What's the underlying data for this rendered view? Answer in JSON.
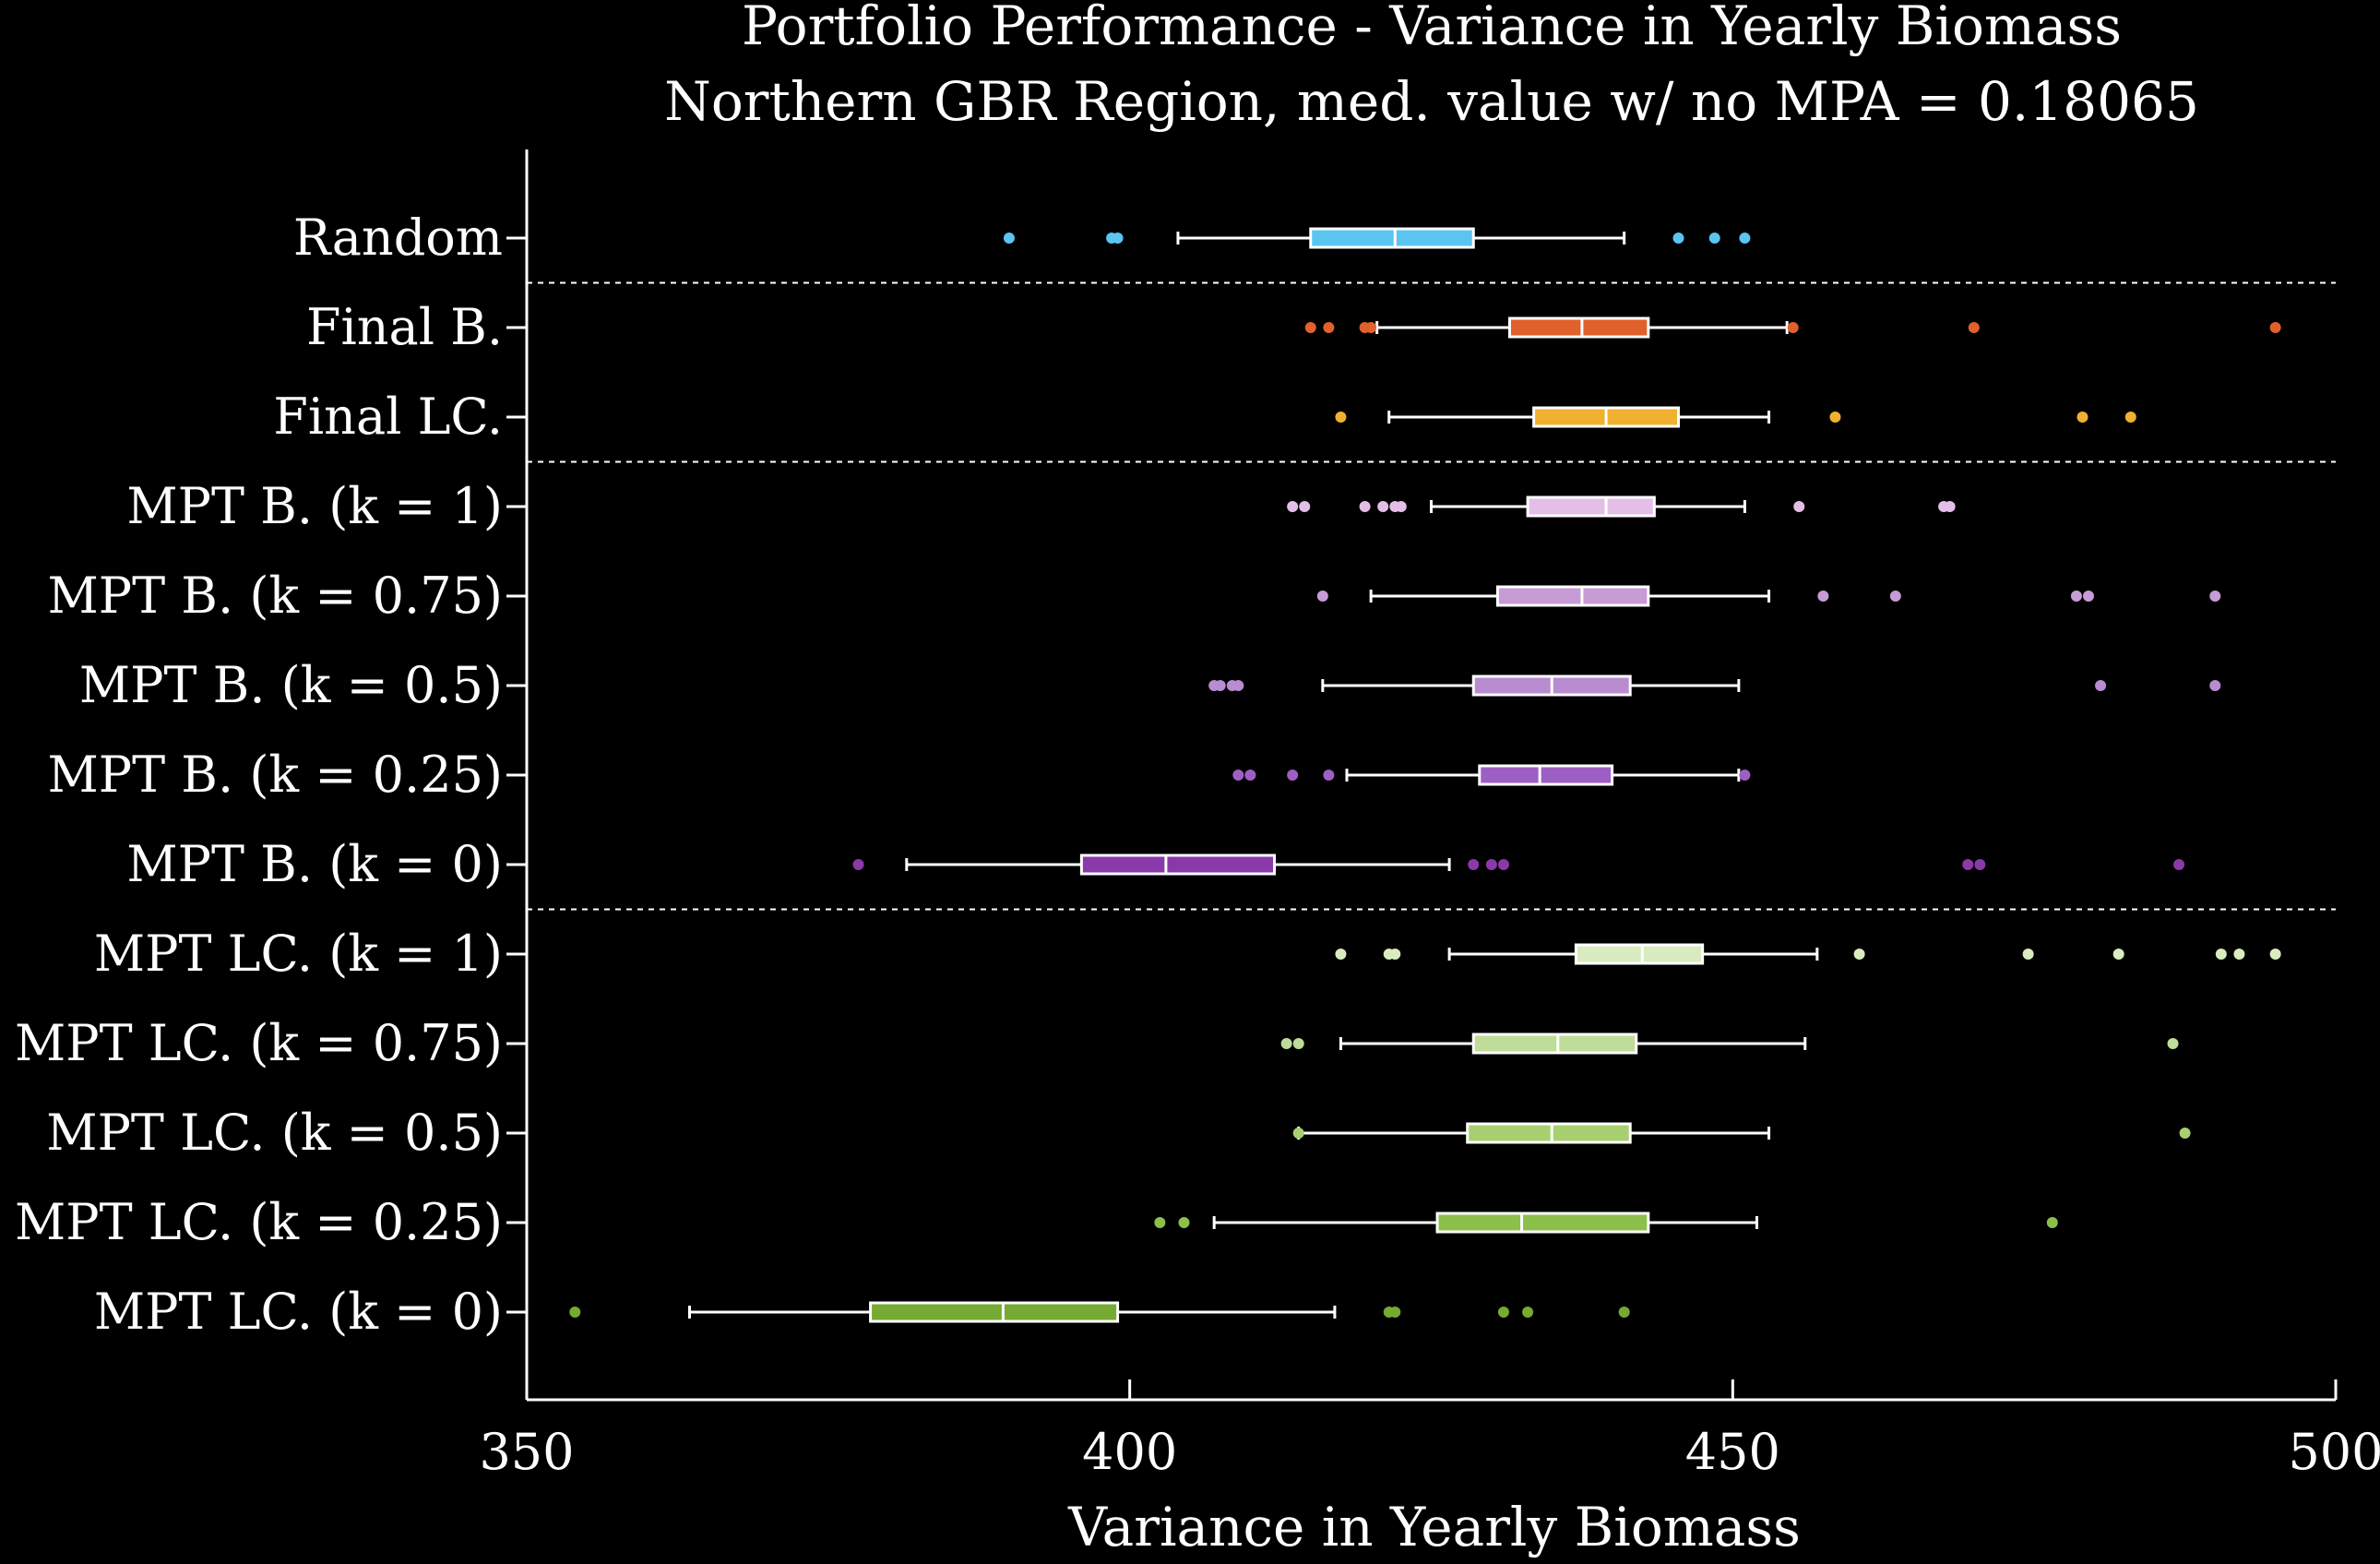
{
  "chart_data": {
    "type": "boxplot",
    "orientation": "horizontal",
    "title": "Portfolio Performance - Variance in Yearly Biomass",
    "subtitle": "Northern GBR Region, med. value w/ no MPA = 0.18065",
    "xlabel": "Variance in Yearly Biomass",
    "xlim": [
      350,
      500
    ],
    "xticks": [
      350,
      400,
      450,
      500
    ],
    "background": "#000000",
    "axis_color": "#ffffff",
    "separators_after": [
      "Random",
      "Final LC.",
      "MPT B. (k = 0)"
    ],
    "series": [
      {
        "name": "Random",
        "color": "#5bc5f2",
        "whislo": 404,
        "q1": 415,
        "med": 422,
        "q3": 428.5,
        "whishi": 441,
        "fliers": [
          390,
          398.5,
          399,
          445.5,
          448.5,
          451
        ]
      },
      {
        "name": "Final B.",
        "color": "#e0612c",
        "whislo": 420.5,
        "q1": 431.5,
        "med": 437.5,
        "q3": 443,
        "whishi": 454.5,
        "fliers": [
          415,
          416.5,
          419.5,
          420,
          455,
          470,
          495
        ]
      },
      {
        "name": "Final LC.",
        "color": "#f0b030",
        "whislo": 421.5,
        "q1": 433.5,
        "med": 439.5,
        "q3": 445.5,
        "whishi": 453,
        "fliers": [
          417.5,
          458.5,
          479,
          483
        ]
      },
      {
        "name": "MPT B. (k = 1)",
        "color": "#e3bfe8",
        "whislo": 425,
        "q1": 433,
        "med": 439.5,
        "q3": 443.5,
        "whishi": 451,
        "fliers": [
          413.5,
          414.5,
          419.5,
          421,
          422,
          422.5,
          455.5,
          467.5,
          468
        ]
      },
      {
        "name": "MPT B. (k = 0.75)",
        "color": "#c79bd6",
        "whislo": 420,
        "q1": 430.5,
        "med": 437.5,
        "q3": 443,
        "whishi": 453,
        "fliers": [
          416,
          457.5,
          463.5,
          478.5,
          479.5,
          490
        ]
      },
      {
        "name": "MPT B. (k = 0.5)",
        "color": "#b98cd0",
        "whislo": 416,
        "q1": 428.5,
        "med": 435,
        "q3": 441.5,
        "whishi": 450.5,
        "fliers": [
          407,
          407.5,
          408.5,
          409,
          480.5,
          490
        ]
      },
      {
        "name": "MPT B. (k = 0.25)",
        "color": "#9e5fc4",
        "whislo": 418,
        "q1": 429,
        "med": 434,
        "q3": 440,
        "whishi": 450.5,
        "fliers": [
          409,
          410,
          413.5,
          416.5,
          451
        ]
      },
      {
        "name": "MPT B. (k = 0)",
        "color": "#8a3aa8",
        "whislo": 381.5,
        "q1": 396,
        "med": 403,
        "q3": 412,
        "whishi": 426.5,
        "fliers": [
          377.5,
          428.5,
          430,
          431,
          469.5,
          470.5,
          487
        ]
      },
      {
        "name": "MPT LC. (k = 1)",
        "color": "#d8ecc0",
        "whislo": 426.5,
        "q1": 437,
        "med": 442.5,
        "q3": 447.5,
        "whishi": 457,
        "fliers": [
          417.5,
          421.5,
          422,
          460.5,
          474.5,
          482,
          490.5,
          492,
          495
        ]
      },
      {
        "name": "MPT LC. (k = 0.75)",
        "color": "#bfdc98",
        "whislo": 417.5,
        "q1": 428.5,
        "med": 435.5,
        "q3": 442,
        "whishi": 456,
        "fliers": [
          413,
          414,
          486.5
        ]
      },
      {
        "name": "MPT LC. (k = 0.5)",
        "color": "#a8d070",
        "whislo": 414,
        "q1": 428,
        "med": 435,
        "q3": 441.5,
        "whishi": 453,
        "fliers": [
          414,
          487.5
        ]
      },
      {
        "name": "MPT LC. (k = 0.25)",
        "color": "#8cc04a",
        "whislo": 407,
        "q1": 425.5,
        "med": 432.5,
        "q3": 443,
        "whishi": 452,
        "fliers": [
          402.5,
          404.5,
          476.5
        ]
      },
      {
        "name": "MPT LC. (k = 0)",
        "color": "#76aa32",
        "whislo": 363.5,
        "q1": 378.5,
        "med": 389.5,
        "q3": 399,
        "whishi": 417,
        "fliers": [
          354,
          421.5,
          422,
          431,
          433,
          441
        ]
      }
    ]
  }
}
